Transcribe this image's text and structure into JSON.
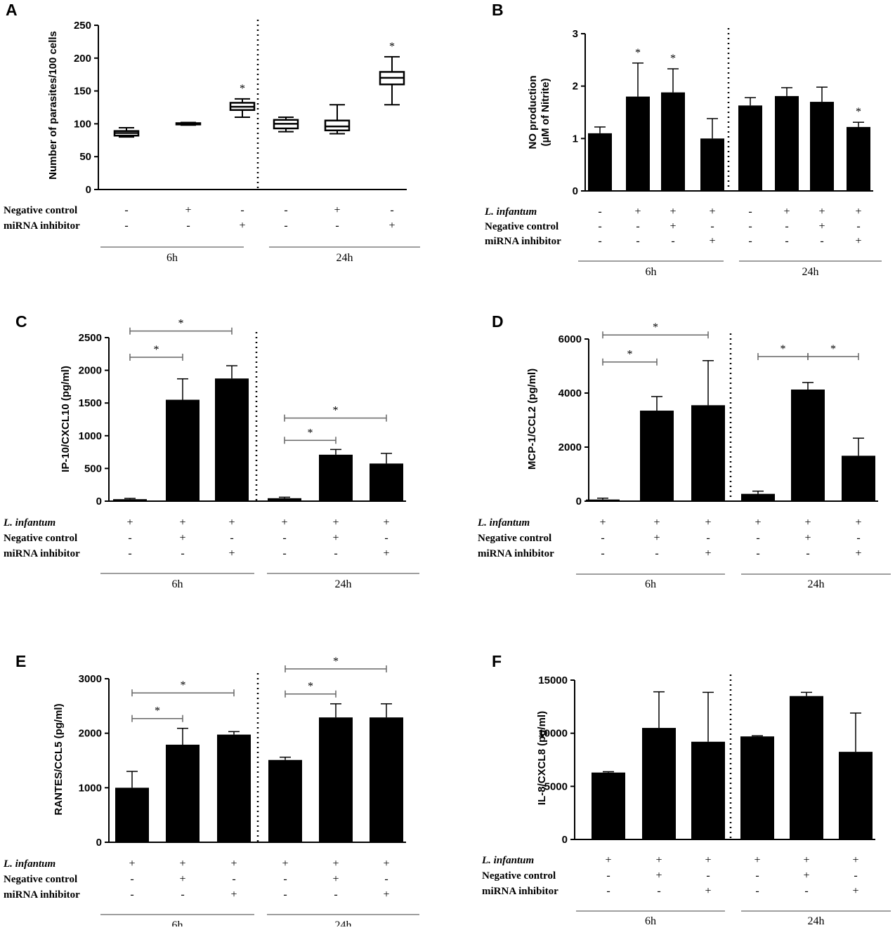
{
  "row_labels": {
    "infantum": "L. infantum",
    "negative_control": "Negative control",
    "mirna_inhibitor": "miRNA inhibitor"
  },
  "time_labels": [
    "6h",
    "24h"
  ],
  "chart_data": [
    {
      "id": "A",
      "type": "box",
      "ylabel": "Number of parasites/100 cells",
      "ylim": [
        0,
        250
      ],
      "yticks": [
        0,
        50,
        100,
        150,
        200,
        250
      ],
      "groups": [
        {
          "min": 80,
          "q1": 82,
          "median": 86,
          "q3": 89,
          "max": 94,
          "star": ""
        },
        {
          "min": 98,
          "q1": 99,
          "median": 100,
          "q3": 101,
          "max": 102,
          "star": ""
        },
        {
          "min": 110,
          "q1": 121,
          "median": 126,
          "q3": 132,
          "max": 138,
          "star": "*"
        },
        {
          "min": 88,
          "q1": 93,
          "median": 100,
          "q3": 106,
          "max": 110,
          "star": ""
        },
        {
          "min": 85,
          "q1": 90,
          "median": 96,
          "q3": 105,
          "max": 129,
          "star": ""
        },
        {
          "min": 129,
          "q1": 160,
          "median": 170,
          "q3": 179,
          "max": 202,
          "star": "*"
        }
      ],
      "rows": [
        {
          "key": "negative_control",
          "signs": [
            "-",
            "+",
            "-",
            "-",
            "+",
            "-"
          ]
        },
        {
          "key": "mirna_inhibitor",
          "signs": [
            "-",
            "-",
            "+",
            "-",
            "-",
            "+"
          ]
        }
      ]
    },
    {
      "id": "B",
      "type": "bar",
      "ylabel_lines": [
        "NO production",
        "(µM of Nitrite)"
      ],
      "ylim": [
        0,
        3
      ],
      "yticks": [
        0,
        1,
        2,
        3
      ],
      "values": [
        1.1,
        1.8,
        1.88,
        1.0,
        1.63,
        1.81,
        1.7,
        1.22
      ],
      "errors": [
        0.12,
        0.64,
        0.45,
        0.38,
        0.15,
        0.16,
        0.28,
        0.09
      ],
      "stars": [
        "",
        "*",
        "*",
        "",
        "",
        "",
        "",
        "*"
      ],
      "rows": [
        {
          "key": "infantum",
          "signs": [
            "-",
            "+",
            "+",
            "+",
            "-",
            "+",
            "+",
            "+"
          ]
        },
        {
          "key": "negative_control",
          "signs": [
            "-",
            "-",
            "+",
            "-",
            "-",
            "-",
            "+",
            "-"
          ]
        },
        {
          "key": "mirna_inhibitor",
          "signs": [
            "-",
            "-",
            "-",
            "+",
            "-",
            "-",
            "-",
            "+"
          ]
        }
      ]
    },
    {
      "id": "C",
      "type": "bar",
      "ylabel": "IP-10/CXCL10 (pg/ml)",
      "ylim": [
        0,
        2500
      ],
      "yticks": [
        0,
        500,
        1000,
        1500,
        2000,
        2500
      ],
      "values": [
        30,
        1550,
        1875,
        45,
        710,
        575
      ],
      "errors": [
        12,
        320,
        195,
        15,
        80,
        155
      ],
      "brackets": [
        {
          "from": 0,
          "to": 2,
          "level": 2600,
          "label": "*"
        },
        {
          "from": 0,
          "to": 1,
          "level": 2200,
          "label": "*"
        },
        {
          "from": 3,
          "to": 5,
          "level": 1270,
          "label": "*"
        },
        {
          "from": 3,
          "to": 4,
          "level": 930,
          "label": "*"
        }
      ],
      "rows": [
        {
          "key": "infantum",
          "signs": [
            "+",
            "+",
            "+",
            "+",
            "+",
            "+"
          ]
        },
        {
          "key": "negative_control",
          "signs": [
            "-",
            "+",
            "-",
            "-",
            "+",
            "-"
          ]
        },
        {
          "key": "mirna_inhibitor",
          "signs": [
            "-",
            "-",
            "+",
            "-",
            "-",
            "+"
          ]
        }
      ]
    },
    {
      "id": "D",
      "type": "bar",
      "ylabel": "MCP-1/CCL2 (pg/ml)",
      "ylim": [
        0,
        6000
      ],
      "yticks": [
        0,
        2000,
        4000,
        6000
      ],
      "values": [
        60,
        3350,
        3550,
        270,
        4130,
        1680
      ],
      "errors": [
        50,
        520,
        1650,
        100,
        260,
        650
      ],
      "brackets": [
        {
          "from": 0,
          "to": 2,
          "level": 6150,
          "label": "*"
        },
        {
          "from": 0,
          "to": 1,
          "level": 5150,
          "label": "*"
        },
        {
          "from": 3,
          "to": 4,
          "level": 5350,
          "label": "*"
        },
        {
          "from": 4,
          "to": 5,
          "level": 5350,
          "label": "*"
        }
      ],
      "rows": [
        {
          "key": "infantum",
          "signs": [
            "+",
            "+",
            "+",
            "+",
            "+",
            "+"
          ]
        },
        {
          "key": "negative_control",
          "signs": [
            "-",
            "+",
            "-",
            "-",
            "+",
            "-"
          ]
        },
        {
          "key": "mirna_inhibitor",
          "signs": [
            "-",
            "-",
            "+",
            "-",
            "-",
            "+"
          ]
        }
      ]
    },
    {
      "id": "E",
      "type": "bar",
      "ylabel": "RANTES/CCL5 (pg/ml)",
      "ylim": [
        0,
        3000
      ],
      "yticks": [
        0,
        1000,
        2000,
        3000
      ],
      "values": [
        1000,
        1790,
        1975,
        1510,
        2290,
        2290
      ],
      "errors": [
        300,
        300,
        55,
        50,
        250,
        250
      ],
      "brackets": [
        {
          "from": 0,
          "to": 2,
          "level": 2740,
          "label": "*"
        },
        {
          "from": 0,
          "to": 1,
          "level": 2270,
          "label": "*"
        },
        {
          "from": 3,
          "to": 5,
          "level": 3180,
          "label": "*"
        },
        {
          "from": 3,
          "to": 4,
          "level": 2720,
          "label": "*"
        }
      ],
      "rows": [
        {
          "key": "infantum",
          "signs": [
            "+",
            "+",
            "+",
            "+",
            "+",
            "+"
          ]
        },
        {
          "key": "negative_control",
          "signs": [
            "-",
            "+",
            "-",
            "-",
            "+",
            "-"
          ]
        },
        {
          "key": "mirna_inhibitor",
          "signs": [
            "-",
            "-",
            "+",
            "-",
            "-",
            "+"
          ]
        }
      ]
    },
    {
      "id": "F",
      "type": "bar",
      "ylabel": "IL-8/CXCL8 (pg/ml)",
      "ylim": [
        0,
        15000
      ],
      "yticks": [
        0,
        5000,
        10000,
        15000
      ],
      "values": [
        6300,
        10500,
        9200,
        9700,
        13500,
        8250
      ],
      "errors": [
        80,
        3400,
        4650,
        60,
        350,
        3650
      ],
      "rows": [
        {
          "key": "infantum",
          "signs": [
            "+",
            "+",
            "+",
            "+",
            "+",
            "+"
          ]
        },
        {
          "key": "negative_control",
          "signs": [
            "-",
            "+",
            "-",
            "-",
            "+",
            "-"
          ]
        },
        {
          "key": "mirna_inhibitor",
          "signs": [
            "-",
            "-",
            "+",
            "-",
            "-",
            "+"
          ]
        }
      ]
    }
  ]
}
